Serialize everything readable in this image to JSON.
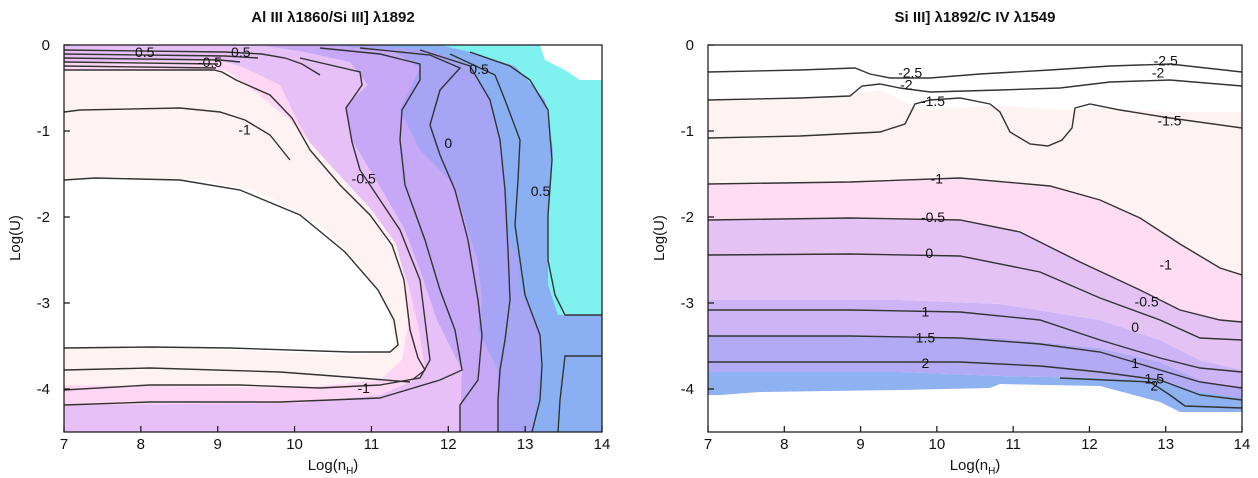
{
  "chart_data": [
    {
      "type": "contour",
      "title": "Al III  λ1860/Si III] λ1892",
      "xlabel": "Log(n",
      "xlabel_sub": "H",
      "xlabel_close": ")",
      "ylabel": "Log(U)",
      "xlim": [
        7,
        14
      ],
      "ylim": [
        -4.5,
        0
      ],
      "xticks": [
        "7",
        "8",
        "9",
        "10",
        "11",
        "12",
        "13",
        "14"
      ],
      "yticks": [
        "0",
        "-1",
        "-2",
        "-3",
        "-4"
      ],
      "fill_colors": {
        "white": "#ffffff",
        "cream": "#fff2f2",
        "pink": "#ffd6f3",
        "lilac": "#e7c0f8",
        "violet": "#c6a8f7",
        "periwinkle": "#a7a3f5",
        "blue": "#8ab0f3",
        "cyan": "#7ff2f0"
      },
      "contour_labels": [
        {
          "text": "0.5",
          "x": 8.05,
          "y": -0.08
        },
        {
          "text": "0.5",
          "x": 9.3,
          "y": -0.08
        },
        {
          "text": "-0.5",
          "x": 8.9,
          "y": -0.2
        },
        {
          "text": "0.5",
          "x": 12.4,
          "y": -0.28
        },
        {
          "text": "-1",
          "x": 9.35,
          "y": -0.98
        },
        {
          "text": "0",
          "x": 12.0,
          "y": -1.14
        },
        {
          "text": "-0.5",
          "x": 10.9,
          "y": -1.55
        },
        {
          "text": "0.5",
          "x": 13.2,
          "y": -1.7
        },
        {
          "text": "-1",
          "x": 10.9,
          "y": -3.99
        }
      ]
    },
    {
      "type": "contour",
      "title": "Si III]  λ1892/C IV  λ1549",
      "xlabel": "Log(n",
      "xlabel_sub": "H",
      "xlabel_close": ")",
      "ylabel": "Log(U)",
      "xlim": [
        7,
        14
      ],
      "ylim": [
        -4.5,
        0
      ],
      "xticks": [
        "7",
        "8",
        "9",
        "10",
        "11",
        "12",
        "13",
        "14"
      ],
      "yticks": [
        "0",
        "-1",
        "-2",
        "-3",
        "-4"
      ],
      "fill_colors": {
        "white": "#ffffff",
        "cream": "#fff2f2",
        "pink": "#ffdcf2",
        "lilac": "#e4c2f4",
        "violet": "#cdb4f7",
        "periwinkle": "#b3aaf5",
        "blue": "#8eb1f2"
      },
      "contour_labels": [
        {
          "text": "-2.5",
          "x": 13.0,
          "y": -0.18
        },
        {
          "text": "-2.5",
          "x": 9.65,
          "y": -0.32
        },
        {
          "text": "-2",
          "x": 12.9,
          "y": -0.32
        },
        {
          "text": "-2",
          "x": 9.6,
          "y": -0.46
        },
        {
          "text": "-1.5",
          "x": 9.95,
          "y": -0.65
        },
        {
          "text": "-1.5",
          "x": 13.05,
          "y": -0.88
        },
        {
          "text": "-1",
          "x": 10.0,
          "y": -1.55
        },
        {
          "text": "-0.5",
          "x": 9.95,
          "y": -2.0
        },
        {
          "text": "0",
          "x": 9.9,
          "y": -2.42
        },
        {
          "text": "-1",
          "x": 13.0,
          "y": -2.55
        },
        {
          "text": "-0.5",
          "x": 12.75,
          "y": -2.98
        },
        {
          "text": "0",
          "x": 12.6,
          "y": -3.28
        },
        {
          "text": "1",
          "x": 9.85,
          "y": -3.1
        },
        {
          "text": "1.5",
          "x": 9.85,
          "y": -3.4
        },
        {
          "text": "2",
          "x": 9.85,
          "y": -3.7
        },
        {
          "text": "1",
          "x": 12.6,
          "y": -3.7
        },
        {
          "text": "1.5",
          "x": 12.85,
          "y": -3.88
        },
        {
          "text": "2",
          "x": 12.85,
          "y": -3.96
        }
      ]
    }
  ]
}
